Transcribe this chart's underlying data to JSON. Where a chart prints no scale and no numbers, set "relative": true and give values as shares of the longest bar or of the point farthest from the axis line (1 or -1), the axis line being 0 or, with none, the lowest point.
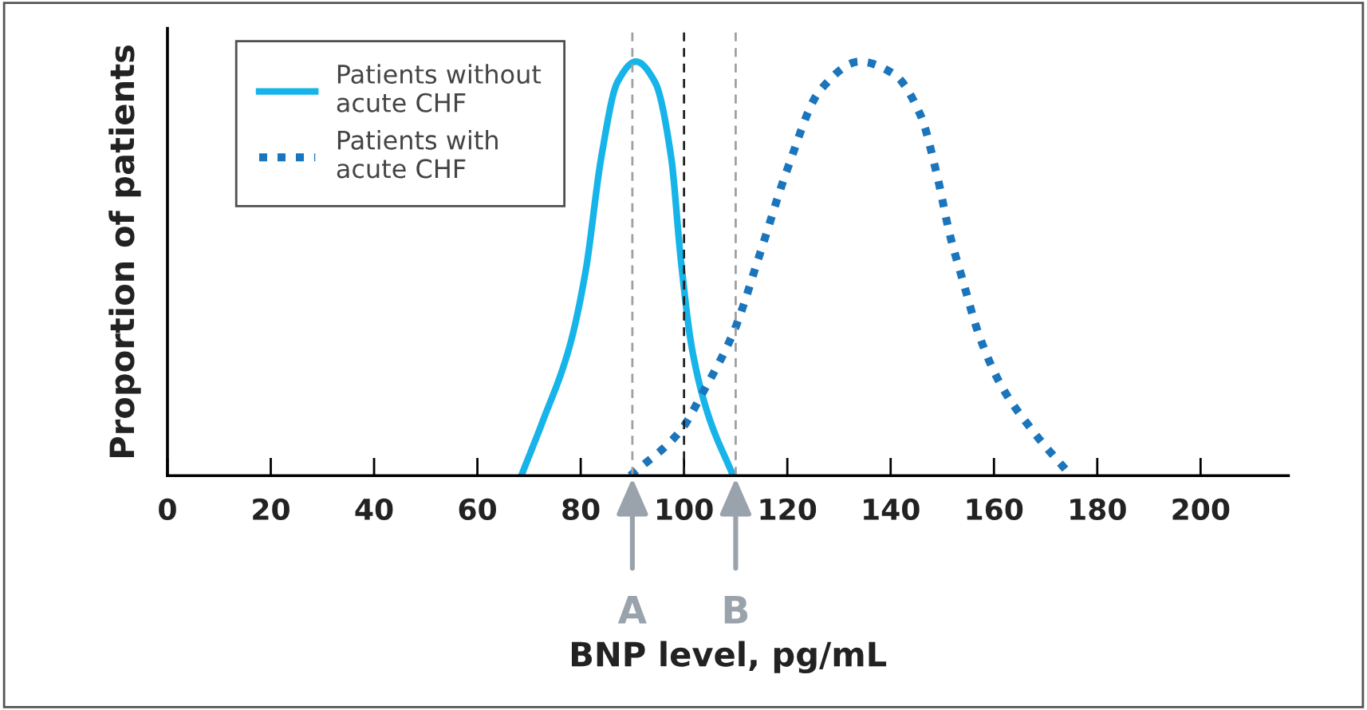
{
  "chart_data": {
    "type": "line",
    "relative": true,
    "xlabel": "BNP level, pg/mL",
    "ylabel": "Proportion of patients",
    "xlim": [
      0,
      217
    ],
    "xticks": [
      0,
      20,
      40,
      60,
      80,
      100,
      120,
      140,
      160,
      180,
      200
    ],
    "series": [
      {
        "name": "Patients without\nacute CHF",
        "color": "#16b4e8",
        "line_style": "solid",
        "x": [
          68.5,
          72.6,
          77.8,
          80.9,
          84.0,
          87.1,
          90.7,
          94.4,
          97.5,
          99.4,
          101.5,
          104.6,
          109.5
        ],
        "values": [
          0,
          0.13,
          0.31,
          0.49,
          0.77,
          0.95,
          1.0,
          0.95,
          0.77,
          0.52,
          0.31,
          0.15,
          0
        ]
      },
      {
        "name": "Patients with\nacute CHF",
        "color": "#1a75bc",
        "line_style": "dotted",
        "x": [
          89.6,
          99.4,
          103.6,
          109.7,
          114.8,
          120,
          126.3,
          134,
          140.6,
          145.8,
          148.9,
          151.5,
          154,
          157.1,
          161.3,
          167.4,
          174.9
        ],
        "values": [
          0,
          0.11,
          0.2,
          0.35,
          0.54,
          0.74,
          0.93,
          1.0,
          0.97,
          0.87,
          0.73,
          0.58,
          0.47,
          0.34,
          0.22,
          0.11,
          0
        ]
      }
    ],
    "ref_lines": [
      {
        "axis": "x",
        "value": 90,
        "color": "#a0a0a0",
        "line_style": "dashed"
      },
      {
        "axis": "x",
        "value": 100,
        "color": "#222222",
        "line_style": "dashed"
      },
      {
        "axis": "x",
        "value": 110,
        "color": "#a0a0a0",
        "line_style": "dashed"
      }
    ],
    "annotations": [
      {
        "text": "A",
        "x": 90,
        "y": 0
      },
      {
        "text": "B",
        "x": 110,
        "y": 0
      }
    ],
    "legend": "top left",
    "grid": false
  }
}
